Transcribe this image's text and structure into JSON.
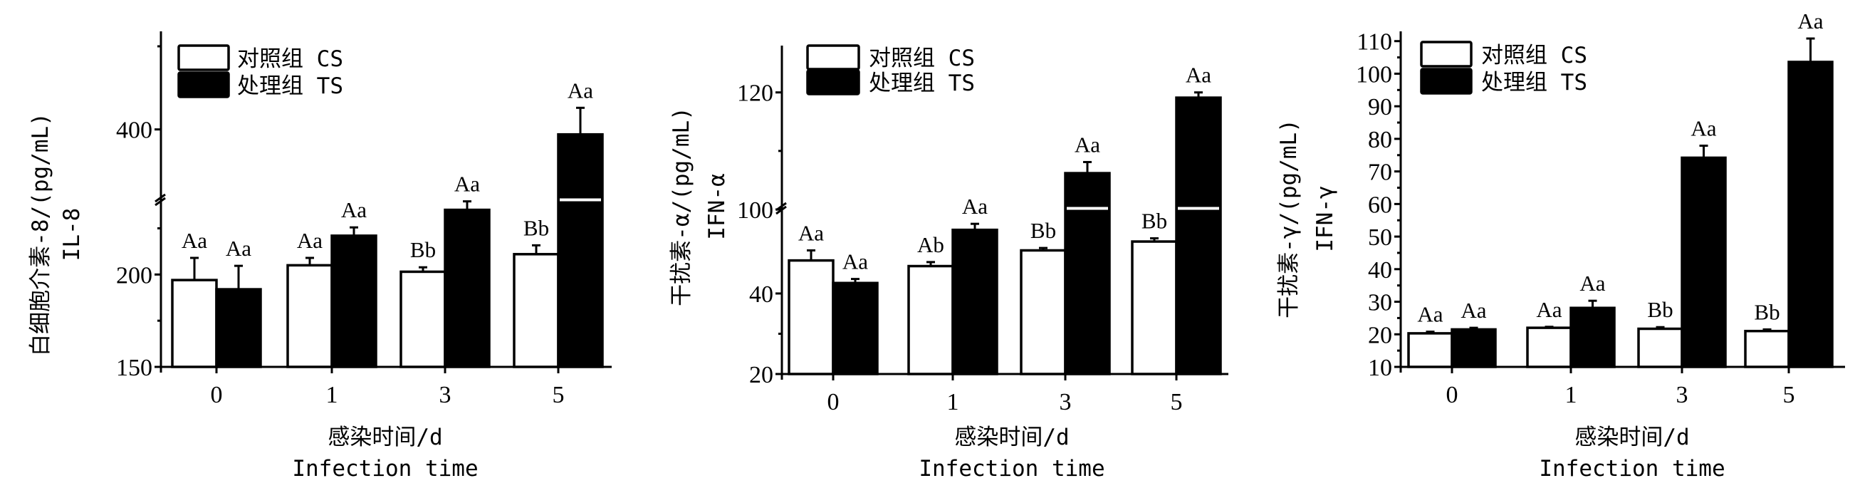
{
  "chart_data": [
    {
      "type": "bar",
      "title": "",
      "ylabel": [
        "白细胞介素-8/(pg/mL)",
        "IL-8"
      ],
      "xlabel": [
        "感染时间/d",
        "Infection time"
      ],
      "categories": [
        "0",
        "1",
        "3",
        "5"
      ],
      "legend": {
        "position": "top-left",
        "entries": [
          "对照组 CS",
          "处理组 TS"
        ]
      },
      "y_axis_break": true,
      "y_segments": [
        [
          150,
          241
        ],
        [
          357,
          459
        ]
      ],
      "y_ticks_labeled": [
        150,
        200,
        400
      ],
      "y_ticks_minor": [
        175,
        225,
        450
      ],
      "series": [
        {
          "name": "对照组 CS",
          "color": "#ffffff",
          "values": [
            197,
            205,
            201.5,
            211
          ],
          "errors": [
            12,
            4,
            2.4,
            4.8
          ],
          "labels": [
            "Aa",
            "Aa",
            "Bb",
            "Bb"
          ]
        },
        {
          "name": "处理组 TS",
          "color": "#000000",
          "values": [
            192,
            221,
            235,
            397
          ],
          "errors": [
            12.7,
            4.5,
            4.6,
            16
          ],
          "labels": [
            "Aa",
            "Aa",
            "Aa",
            "Aa"
          ]
        }
      ]
    },
    {
      "type": "bar",
      "title": "",
      "ylabel": [
        "干扰素-α/(pg/mL)",
        "IFN-α"
      ],
      "xlabel": [
        "感染时间/d",
        "Infection time"
      ],
      "categories": [
        "0",
        "1",
        "3",
        "5"
      ],
      "legend": {
        "position": "top-left",
        "entries": [
          "对照组 CS",
          "处理组 TS"
        ]
      },
      "y_axis_break": true,
      "y_segments": [
        [
          20,
          61.4
        ],
        [
          100,
          128
        ]
      ],
      "y_ticks_labeled": [
        20,
        40,
        100,
        120
      ],
      "y_ticks_minor": [
        30,
        110
      ],
      "series": [
        {
          "name": "对照组 CS",
          "color": "#ffffff",
          "values": [
            48.2,
            46.8,
            50.7,
            52.9
          ],
          "errors": [
            2.5,
            1,
            0.6,
            0.8
          ],
          "labels": [
            "Aa",
            "Ab",
            "Bb",
            "Bb"
          ]
        },
        {
          "name": "处理组 TS",
          "color": "#000000",
          "values": [
            42.6,
            55.8,
            106.2,
            119.1
          ],
          "errors": [
            1,
            1.5,
            1.9,
            0.9
          ],
          "labels": [
            "Aa",
            "Aa",
            "Aa",
            "Aa"
          ]
        }
      ]
    },
    {
      "type": "bar",
      "title": "",
      "ylabel": [
        "干扰素-γ/(pg/mL)",
        "IFN-γ"
      ],
      "xlabel": [
        "感染时间/d",
        "Infection time"
      ],
      "categories": [
        "0",
        "1",
        "3",
        "5"
      ],
      "legend": {
        "position": "top-left",
        "entries": [
          "对照组 CS",
          "处理组 TS"
        ]
      },
      "y_axis_break": false,
      "y_segments": [
        [
          10,
          113
        ]
      ],
      "y_ticks_labeled": [
        10,
        20,
        30,
        40,
        50,
        60,
        70,
        80,
        90,
        100,
        110
      ],
      "y_ticks_minor": [
        15,
        25,
        35,
        45,
        55,
        65,
        75,
        85,
        95,
        105
      ],
      "series": [
        {
          "name": "对照组 CS",
          "color": "#ffffff",
          "values": [
            20.3,
            22,
            21.7,
            21
          ],
          "errors": [
            0.5,
            0.3,
            0.5,
            0.5
          ],
          "labels": [
            "Aa",
            "Aa",
            "Bb",
            "Bb"
          ]
        },
        {
          "name": "处理组 TS",
          "color": "#000000",
          "values": [
            21.5,
            28.1,
            74.2,
            103.6
          ],
          "errors": [
            0.5,
            2.2,
            3.7,
            7.2
          ],
          "labels": [
            "Aa",
            "Aa",
            "Aa",
            "Aa"
          ]
        }
      ]
    }
  ]
}
